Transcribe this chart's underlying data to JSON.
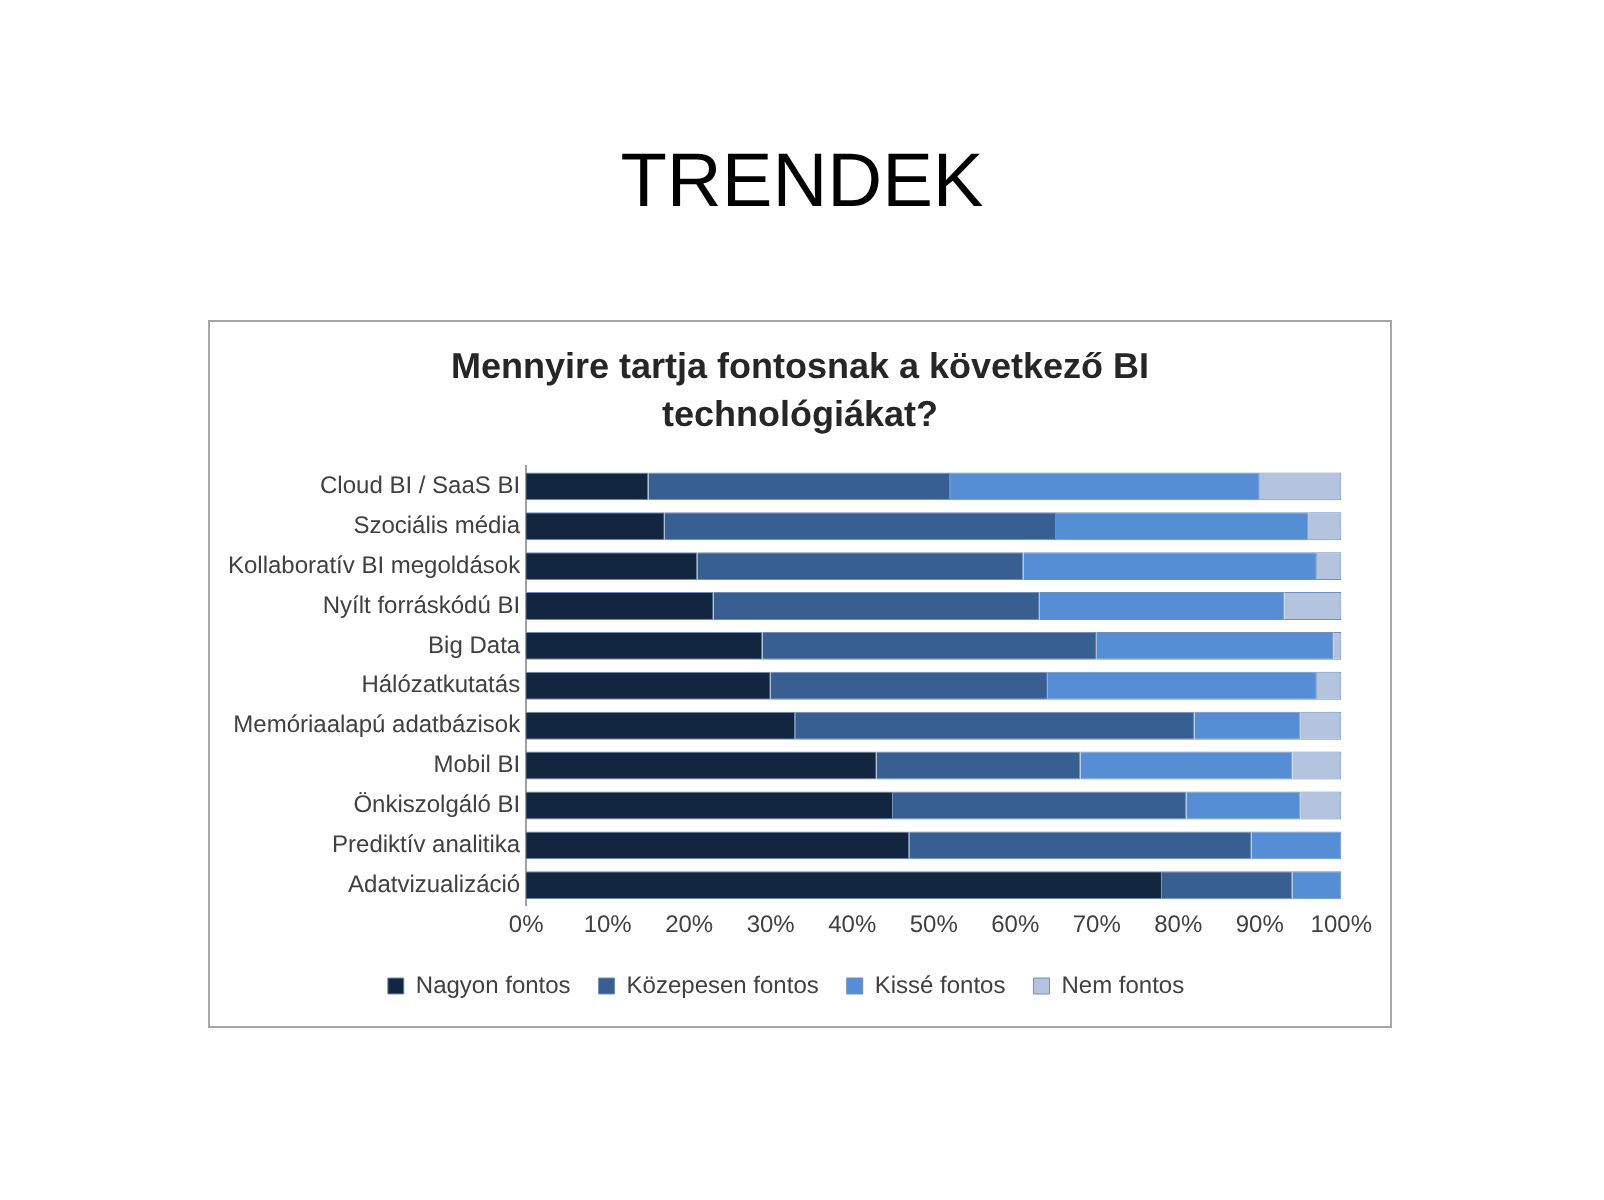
{
  "chart_data": {
    "type": "bar",
    "title": "TRENDEK",
    "subtitle": "Mennyire tartja fontosnak a következő BI technológiákat?",
    "orientation": "horizontal",
    "stacked": true,
    "categories": [
      "Cloud BI / SaaS BI",
      "Szociális média",
      "Kollaboratív BI megoldások",
      "Nyílt forráskódú BI",
      "Big Data",
      "Hálózatkutatás",
      "Memóriaalapú adatbázisok",
      "Mobil BI",
      "Önkiszolgáló BI",
      "Prediktív analitika",
      "Adatvizualizáció"
    ],
    "series": [
      {
        "name": "Nagyon fontos",
        "color": "#12263f",
        "values": [
          15,
          17,
          21,
          23,
          29,
          30,
          33,
          43,
          45,
          47,
          78
        ]
      },
      {
        "name": "Közepesen fontos",
        "color": "#375f92",
        "values": [
          37,
          48,
          40,
          40,
          41,
          34,
          49,
          25,
          36,
          42,
          16
        ]
      },
      {
        "name": "Kissé fontos",
        "color": "#558ed5",
        "values": [
          38,
          31,
          36,
          30,
          29,
          33,
          13,
          26,
          14,
          11,
          6
        ]
      },
      {
        "name": "Nem fontos",
        "color": "#b4c3de",
        "values": [
          10,
          4,
          3,
          7,
          1,
          3,
          5,
          6,
          5,
          0,
          0
        ]
      }
    ],
    "xlim": [
      0,
      100
    ],
    "xticks": [
      {
        "value": 0,
        "label": "0%"
      },
      {
        "value": 10,
        "label": "10%"
      },
      {
        "value": 20,
        "label": "20%"
      },
      {
        "value": 30,
        "label": "30%"
      },
      {
        "value": 40,
        "label": "40%"
      },
      {
        "value": 50,
        "label": "50%"
      },
      {
        "value": 60,
        "label": "60%"
      },
      {
        "value": 70,
        "label": "70%"
      },
      {
        "value": 80,
        "label": "80%"
      },
      {
        "value": 90,
        "label": "90%"
      },
      {
        "value": 100,
        "label": "100%"
      }
    ],
    "grid": false,
    "legend": "bottom"
  }
}
